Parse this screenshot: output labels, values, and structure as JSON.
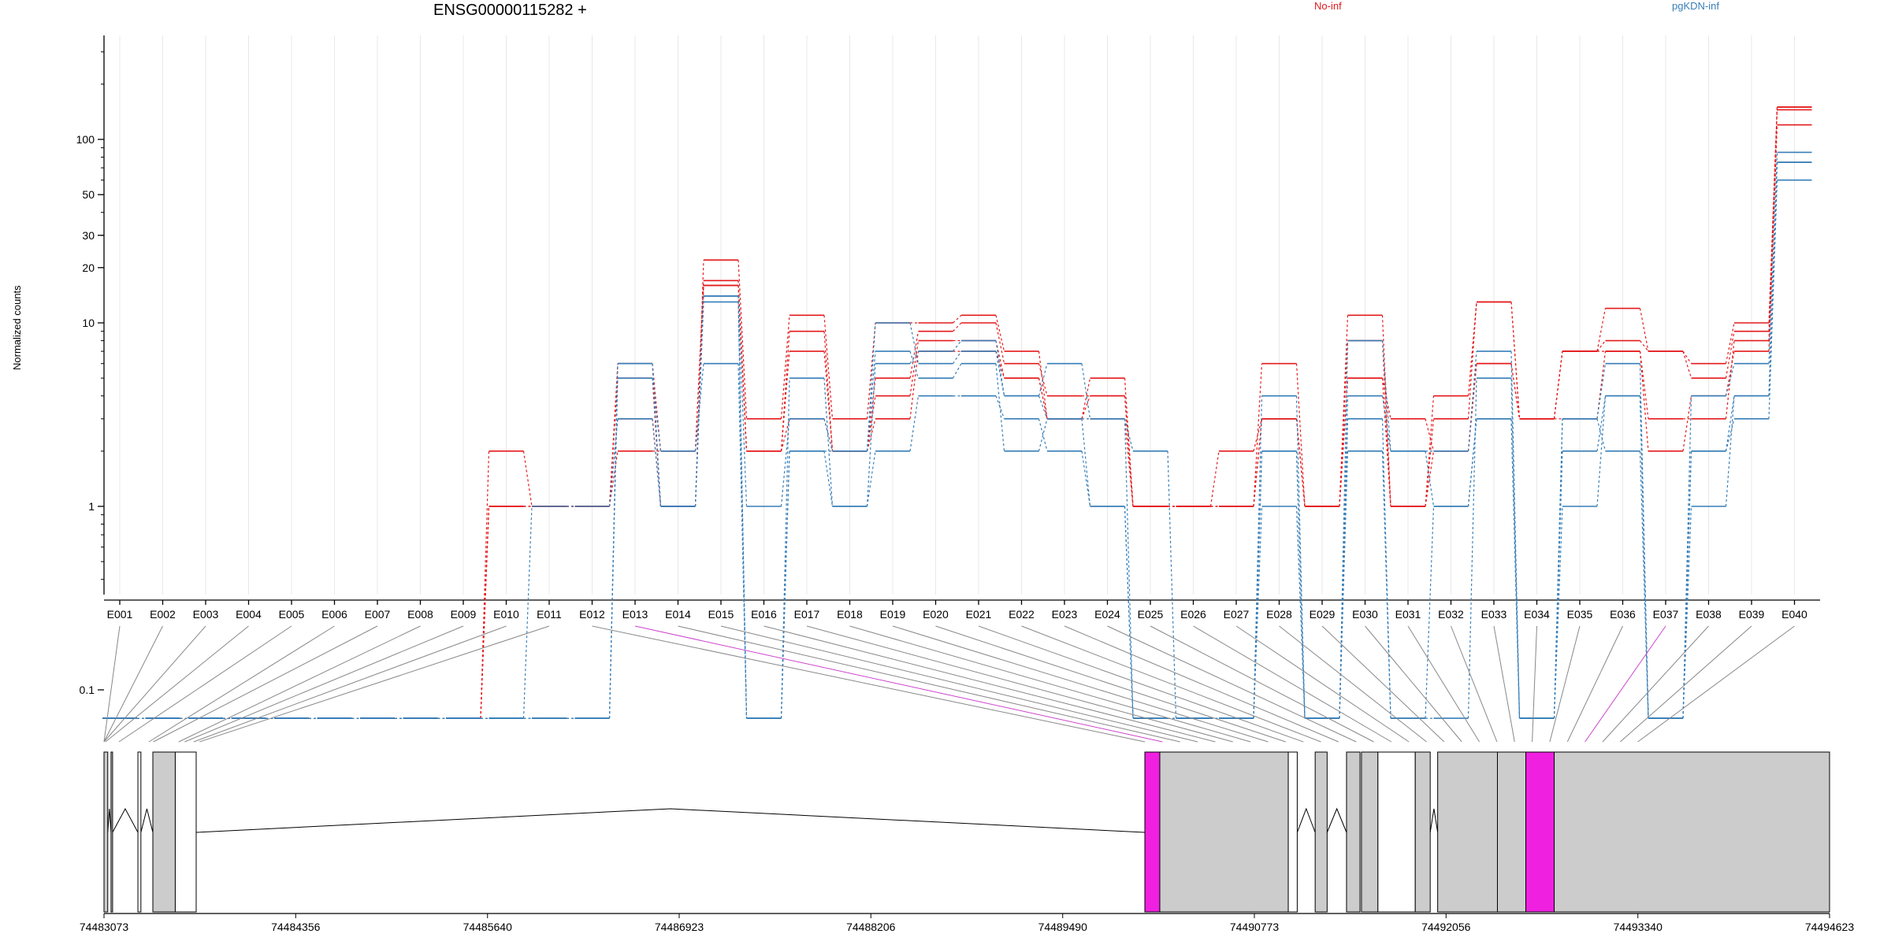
{
  "chart_data": {
    "type": "line",
    "title": "ENSG00000115282 +",
    "ylabel": "Normalized counts",
    "yscale": "log",
    "yticks": [
      "100",
      "50",
      "30",
      "20",
      "10",
      "1",
      "0.1"
    ],
    "legend": [
      {
        "name": "No-inf",
        "color": "#e41a1c"
      },
      {
        "name": "pgKDN-inf",
        "color": "#377eb8"
      }
    ],
    "categories": [
      "E001",
      "E002",
      "E003",
      "E004",
      "E005",
      "E006",
      "E007",
      "E008",
      "E009",
      "E010",
      "E011",
      "E012",
      "E013",
      "E014",
      "E015",
      "E016",
      "E017",
      "E018",
      "E019",
      "E020",
      "E021",
      "E022",
      "E023",
      "E024",
      "E025",
      "E026",
      "E027",
      "E028",
      "E029",
      "E030",
      "E031",
      "E032",
      "E033",
      "E034",
      "E035",
      "E036",
      "E037",
      "E038",
      "E039",
      "E040"
    ],
    "highlighted_exons": [
      "E013",
      "E037"
    ],
    "series": [
      {
        "group": "No-inf",
        "values": [
          0.07,
          0.07,
          0.07,
          0.07,
          0.07,
          0.07,
          0.07,
          0.07,
          0.07,
          2,
          1,
          1,
          3,
          1,
          22,
          3,
          11,
          3,
          10,
          10,
          11,
          7,
          3,
          5,
          1,
          1,
          1,
          6,
          1,
          11,
          1,
          3,
          13,
          3,
          7,
          12,
          7,
          6,
          10,
          150
        ]
      },
      {
        "group": "No-inf",
        "values": [
          0.07,
          0.07,
          0.07,
          0.07,
          0.07,
          0.07,
          0.07,
          0.07,
          0.07,
          1,
          1,
          1,
          6,
          2,
          17,
          2,
          9,
          2,
          5,
          9,
          10,
          6,
          4,
          4,
          1,
          1,
          1,
          3,
          1,
          8,
          1,
          4,
          13,
          3,
          7,
          8,
          7,
          5,
          9,
          150
        ]
      },
      {
        "group": "No-inf",
        "values": [
          0.07,
          0.07,
          0.07,
          0.07,
          0.07,
          0.07,
          0.07,
          0.07,
          0.07,
          1,
          1,
          1,
          5,
          1,
          16,
          2,
          7,
          2,
          4,
          8,
          8,
          5,
          3,
          4,
          1,
          1,
          2,
          3,
          1,
          5,
          1,
          2,
          6,
          3,
          7,
          7,
          3,
          3,
          8,
          145
        ]
      },
      {
        "group": "No-inf",
        "values": [
          0.07,
          0.07,
          0.07,
          0.07,
          0.07,
          0.07,
          0.07,
          0.07,
          0.07,
          1,
          1,
          1,
          2,
          2,
          16,
          2,
          3,
          2,
          3,
          7,
          7,
          5,
          3,
          3,
          1,
          1,
          1,
          3,
          1,
          5,
          3,
          2,
          6,
          3,
          3,
          7,
          2,
          4,
          7,
          120
        ]
      },
      {
        "group": "pgKDN-inf",
        "values": [
          0.07,
          0.07,
          0.07,
          0.07,
          0.07,
          0.07,
          0.07,
          0.07,
          0.07,
          0.07,
          0.07,
          0.07,
          6,
          1,
          14,
          0.07,
          5,
          1,
          6,
          7,
          8,
          4,
          6,
          3,
          2,
          0.07,
          0.07,
          4,
          0.07,
          8,
          2,
          2,
          7,
          0.07,
          3,
          6,
          0.07,
          4,
          6,
          85
        ]
      },
      {
        "group": "pgKDN-inf",
        "values": [
          0.07,
          0.07,
          0.07,
          0.07,
          0.07,
          0.07,
          0.07,
          0.07,
          0.07,
          0.07,
          0.07,
          0.07,
          6,
          1,
          14,
          1,
          3,
          2,
          10,
          6,
          7,
          4,
          3,
          1,
          0.07,
          0.07,
          0.07,
          2,
          0.07,
          4,
          2,
          1,
          3,
          0.07,
          1,
          4,
          0.07,
          2,
          4,
          75
        ]
      },
      {
        "group": "pgKDN-inf",
        "values": [
          0.07,
          0.07,
          0.07,
          0.07,
          0.07,
          0.07,
          0.07,
          0.07,
          0.07,
          0.07,
          1,
          1,
          3,
          1,
          13,
          0.07,
          2,
          2,
          7,
          5,
          6,
          2,
          3,
          3,
          0.07,
          0.07,
          0.07,
          1,
          0.07,
          3,
          0.07,
          1,
          3,
          0.07,
          3,
          2,
          0.07,
          1,
          4,
          75
        ]
      },
      {
        "group": "pgKDN-inf",
        "values": [
          0.07,
          0.07,
          0.07,
          0.07,
          0.07,
          0.07,
          0.07,
          0.07,
          0.07,
          0.07,
          0.07,
          0.07,
          5,
          2,
          6,
          0.07,
          2,
          1,
          2,
          4,
          4,
          3,
          2,
          1,
          0.07,
          0.07,
          0.07,
          2,
          0.07,
          2,
          0.07,
          0.07,
          5,
          0.07,
          2,
          4,
          0.07,
          2,
          3,
          60
        ]
      }
    ],
    "genomic_axis": {
      "ticks": [
        "74483073",
        "74484356",
        "74485640",
        "74486923",
        "74488206",
        "74489490",
        "74490773",
        "74492056",
        "74493340",
        "74494623"
      ],
      "range": [
        74483073,
        74494623
      ]
    },
    "gene_model": {
      "exons": [
        {
          "start": 74483073,
          "end": 74483098,
          "fill": "gray"
        },
        {
          "start": 74483120,
          "end": 74483130,
          "fill": "gray"
        },
        {
          "start": 74483300,
          "end": 74483320,
          "fill": "white"
        },
        {
          "start": 74483400,
          "end": 74483550,
          "fill": "gray"
        },
        {
          "start": 74483550,
          "end": 74483690,
          "fill": "white"
        },
        {
          "start": 74490040,
          "end": 74490140,
          "fill": "magenta"
        },
        {
          "start": 74490140,
          "end": 74491000,
          "fill": "gray"
        },
        {
          "start": 74491000,
          "end": 74491060,
          "fill": "white"
        },
        {
          "start": 74491180,
          "end": 74491260,
          "fill": "gray"
        },
        {
          "start": 74491390,
          "end": 74491480,
          "fill": "gray"
        },
        {
          "start": 74491490,
          "end": 74491600,
          "fill": "gray"
        },
        {
          "start": 74491600,
          "end": 74491850,
          "fill": "white"
        },
        {
          "start": 74491850,
          "end": 74491950,
          "fill": "gray"
        },
        {
          "start": 74492000,
          "end": 74492400,
          "fill": "gray"
        },
        {
          "start": 74492400,
          "end": 74492590,
          "fill": "gray"
        },
        {
          "start": 74492590,
          "end": 74492780,
          "fill": "magenta"
        },
        {
          "start": 74492780,
          "end": 74494623,
          "fill": "gray"
        }
      ]
    }
  }
}
